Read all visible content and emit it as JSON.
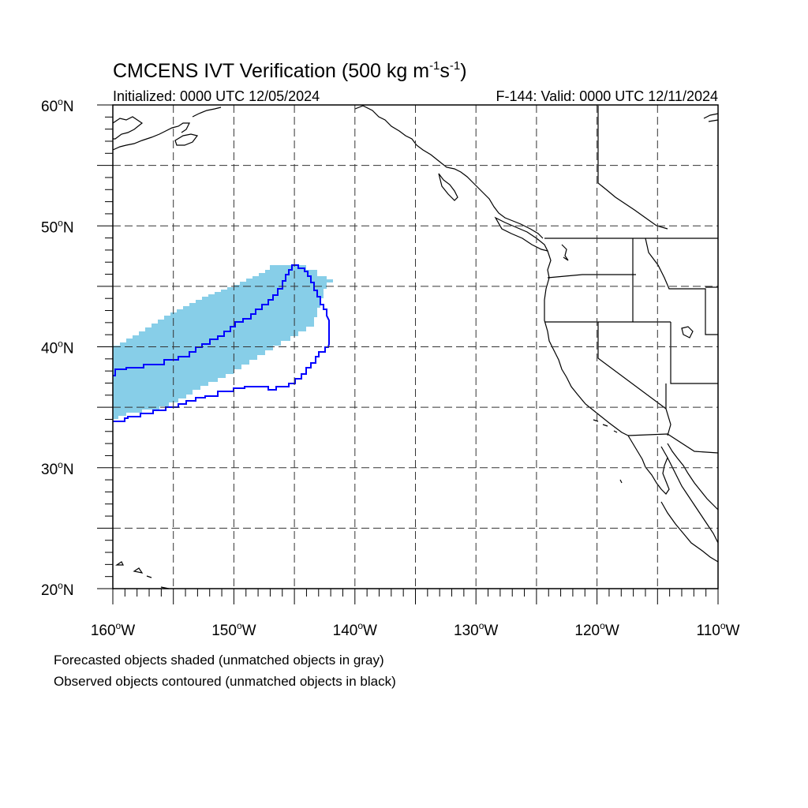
{
  "title": {
    "main": "CMCENS IVT Verification (500 kg m",
    "sup1": "-1",
    "mid": "s",
    "sup2": "-1",
    "end": ")"
  },
  "initialized": "Initialized: 0000 UTC 12/05/2024",
  "valid": "F-144: Valid: 0000 UTC 12/11/2024",
  "map": {
    "lon_range": [
      -160,
      -110
    ],
    "lat_range": [
      20,
      60
    ],
    "lat_labels": [
      {
        "lat": 60,
        "deg": "60",
        "hem": "N"
      },
      {
        "lat": 50,
        "deg": "50",
        "hem": "N"
      },
      {
        "lat": 40,
        "deg": "40",
        "hem": "N"
      },
      {
        "lat": 30,
        "deg": "30",
        "hem": "N"
      },
      {
        "lat": 20,
        "deg": "20",
        "hem": "N"
      }
    ],
    "lon_labels": [
      {
        "lon": -160,
        "deg": "160",
        "hem": "W"
      },
      {
        "lon": -150,
        "deg": "150",
        "hem": "W"
      },
      {
        "lon": -140,
        "deg": "140",
        "hem": "W"
      },
      {
        "lon": -130,
        "deg": "130",
        "hem": "W"
      },
      {
        "lon": -120,
        "deg": "120",
        "hem": "W"
      },
      {
        "lon": -110,
        "deg": "110",
        "hem": "W"
      }
    ],
    "grid_lons": [
      -155,
      -150,
      -145,
      -140,
      -135,
      -130,
      -125,
      -120,
      -115
    ],
    "grid_lats": [
      25,
      30,
      35,
      40,
      45,
      50,
      55
    ],
    "forecast_color": "#87CEE8",
    "observed_color": "#0000ff"
  },
  "footnotes": [
    "Forecasted objects shaded (unmatched objects in gray)",
    "Observed objects contoured (unmatched objects in black)"
  ]
}
